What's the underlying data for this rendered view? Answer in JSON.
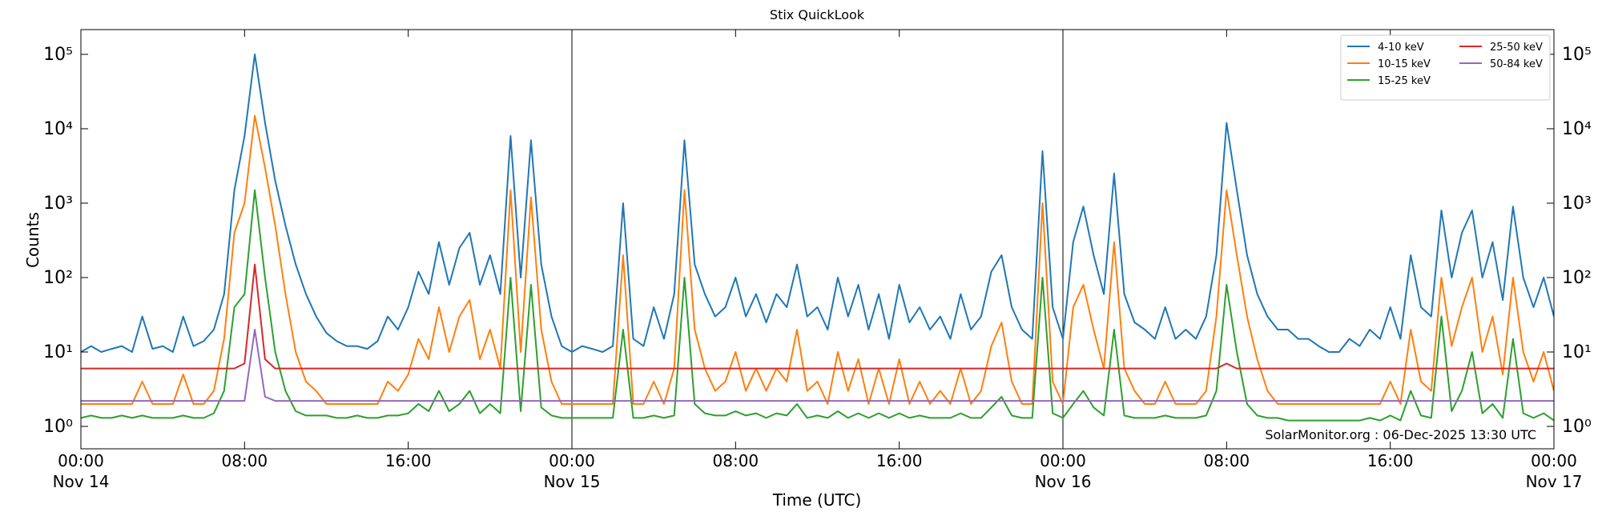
{
  "chart_data": {
    "type": "line",
    "title": "Stix QuickLook",
    "xlabel": "Time (UTC)",
    "ylabel": "Counts",
    "annotation": "SolarMonitor.org : 06-Dec-2025 13:30 UTC",
    "log_y": true,
    "legend": "upper right",
    "ylim": [
      0.5,
      215000
    ],
    "yticks": [
      {
        "value": 1,
        "label": "10⁰"
      },
      {
        "value": 10,
        "label": "10¹"
      },
      {
        "value": 100,
        "label": "10²"
      },
      {
        "value": 1000,
        "label": "10³"
      },
      {
        "value": 10000,
        "label": "10⁴"
      },
      {
        "value": 100000,
        "label": "10⁵"
      }
    ],
    "xlim": [
      "Nov 14 00:00",
      "Nov 17 00:00"
    ],
    "xticks": [
      {
        "value": "Nov 14 00:00",
        "label": "00:00\nNov 14"
      },
      {
        "value": "Nov 14 08:00",
        "label": "08:00"
      },
      {
        "value": "Nov 14 16:00",
        "label": "16:00"
      },
      {
        "value": "Nov 15 00:00",
        "label": "00:00\nNov 15"
      },
      {
        "value": "Nov 15 08:00",
        "label": "08:00"
      },
      {
        "value": "Nov 15 16:00",
        "label": "16:00"
      },
      {
        "value": "Nov 16 00:00",
        "label": "00:00\nNov 16"
      },
      {
        "value": "Nov 16 08:00",
        "label": "08:00"
      },
      {
        "value": "Nov 16 16:00",
        "label": "16:00"
      },
      {
        "value": "Nov 17 00:00",
        "label": "00:00\nNov 17"
      }
    ],
    "vlines": [
      "Nov 15 00:00",
      "Nov 16 00:00"
    ],
    "x": [
      "Nov 14 00:00",
      "Nov 14 00:30",
      "Nov 14 01:00",
      "Nov 14 01:30",
      "Nov 14 02:00",
      "Nov 14 02:30",
      "Nov 14 03:00",
      "Nov 14 03:30",
      "Nov 14 04:00",
      "Nov 14 04:30",
      "Nov 14 05:00",
      "Nov 14 05:30",
      "Nov 14 06:00",
      "Nov 14 06:30",
      "Nov 14 07:00",
      "Nov 14 07:30",
      "Nov 14 08:00",
      "Nov 14 08:30",
      "Nov 14 09:00",
      "Nov 14 09:30",
      "Nov 14 10:00",
      "Nov 14 10:30",
      "Nov 14 11:00",
      "Nov 14 11:30",
      "Nov 14 12:00",
      "Nov 14 12:30",
      "Nov 14 13:00",
      "Nov 14 13:30",
      "Nov 14 14:00",
      "Nov 14 14:30",
      "Nov 14 15:00",
      "Nov 14 15:30",
      "Nov 14 16:00",
      "Nov 14 16:30",
      "Nov 14 17:00",
      "Nov 14 17:30",
      "Nov 14 18:00",
      "Nov 14 18:30",
      "Nov 14 19:00",
      "Nov 14 19:30",
      "Nov 14 20:00",
      "Nov 14 20:30",
      "Nov 14 21:00",
      "Nov 14 21:30",
      "Nov 14 22:00",
      "Nov 14 22:30",
      "Nov 14 23:00",
      "Nov 14 23:30",
      "Nov 15 00:00",
      "Nov 15 00:30",
      "Nov 15 01:00",
      "Nov 15 01:30",
      "Nov 15 02:00",
      "Nov 15 02:30",
      "Nov 15 03:00",
      "Nov 15 03:30",
      "Nov 15 04:00",
      "Nov 15 04:30",
      "Nov 15 05:00",
      "Nov 15 05:30",
      "Nov 15 06:00",
      "Nov 15 06:30",
      "Nov 15 07:00",
      "Nov 15 07:30",
      "Nov 15 08:00",
      "Nov 15 08:30",
      "Nov 15 09:00",
      "Nov 15 09:30",
      "Nov 15 10:00",
      "Nov 15 10:30",
      "Nov 15 11:00",
      "Nov 15 11:30",
      "Nov 15 12:00",
      "Nov 15 12:30",
      "Nov 15 13:00",
      "Nov 15 13:30",
      "Nov 15 14:00",
      "Nov 15 14:30",
      "Nov 15 15:00",
      "Nov 15 15:30",
      "Nov 15 16:00",
      "Nov 15 16:30",
      "Nov 15 17:00",
      "Nov 15 17:30",
      "Nov 15 18:00",
      "Nov 15 18:30",
      "Nov 15 19:00",
      "Nov 15 19:30",
      "Nov 15 20:00",
      "Nov 15 20:30",
      "Nov 15 21:00",
      "Nov 15 21:30",
      "Nov 15 22:00",
      "Nov 15 22:30",
      "Nov 15 23:00",
      "Nov 15 23:30",
      "Nov 16 00:00",
      "Nov 16 00:30",
      "Nov 16 01:00",
      "Nov 16 01:30",
      "Nov 16 02:00",
      "Nov 16 02:30",
      "Nov 16 03:00",
      "Nov 16 03:30",
      "Nov 16 04:00",
      "Nov 16 04:30",
      "Nov 16 05:00",
      "Nov 16 05:30",
      "Nov 16 06:00",
      "Nov 16 06:30",
      "Nov 16 07:00",
      "Nov 16 07:30",
      "Nov 16 08:00",
      "Nov 16 08:30",
      "Nov 16 09:00",
      "Nov 16 09:30",
      "Nov 16 10:00",
      "Nov 16 10:30",
      "Nov 16 11:00",
      "Nov 16 11:30",
      "Nov 16 12:00",
      "Nov 16 12:30",
      "Nov 16 13:00",
      "Nov 16 13:30",
      "Nov 16 14:00",
      "Nov 16 14:30",
      "Nov 16 15:00",
      "Nov 16 15:30",
      "Nov 16 16:00",
      "Nov 16 16:30",
      "Nov 16 17:00",
      "Nov 16 17:30",
      "Nov 16 18:00",
      "Nov 16 18:30",
      "Nov 16 19:00",
      "Nov 16 19:30",
      "Nov 16 20:00",
      "Nov 16 20:30",
      "Nov 16 21:00",
      "Nov 16 21:30",
      "Nov 16 22:00",
      "Nov 16 22:30",
      "Nov 16 23:00",
      "Nov 16 23:30",
      "Nov 17 00:00"
    ],
    "series": [
      {
        "name": "4-10 keV",
        "color": "#1f77b4",
        "values": [
          10,
          12,
          10,
          11,
          12,
          10,
          30,
          11,
          12,
          10,
          30,
          12,
          14,
          20,
          60,
          1500,
          8000,
          100000,
          12000,
          2000,
          500,
          150,
          60,
          30,
          18,
          14,
          12,
          12,
          11,
          14,
          30,
          20,
          40,
          120,
          60,
          300,
          80,
          250,
          400,
          80,
          200,
          60,
          8000,
          100,
          7000,
          150,
          30,
          12,
          10,
          12,
          11,
          10,
          12,
          1000,
          15,
          12,
          40,
          15,
          60,
          7000,
          150,
          60,
          30,
          40,
          100,
          30,
          60,
          25,
          60,
          40,
          150,
          30,
          40,
          20,
          100,
          30,
          80,
          20,
          60,
          15,
          80,
          25,
          40,
          20,
          30,
          15,
          60,
          20,
          30,
          120,
          200,
          40,
          20,
          15,
          5000,
          40,
          15,
          300,
          900,
          200,
          60,
          2500,
          60,
          25,
          20,
          15,
          40,
          15,
          20,
          15,
          30,
          200,
          12000,
          1500,
          200,
          60,
          30,
          20,
          20,
          15,
          15,
          12,
          10,
          10,
          15,
          12,
          20,
          15,
          40,
          15,
          200,
          40,
          30,
          800,
          100,
          400,
          800,
          100,
          300,
          50,
          900,
          100,
          40,
          100,
          30
        ]
      },
      {
        "name": "10-15 keV",
        "color": "#ff7f0e",
        "values": [
          2,
          2,
          2,
          2,
          2,
          2,
          4,
          2,
          2,
          2,
          5,
          2,
          2,
          3,
          15,
          400,
          1000,
          15000,
          3000,
          500,
          60,
          10,
          4,
          3,
          2,
          2,
          2,
          2,
          2,
          2,
          4,
          3,
          5,
          15,
          8,
          40,
          10,
          30,
          50,
          8,
          20,
          6,
          1500,
          10,
          1200,
          20,
          4,
          2,
          2,
          2,
          2,
          2,
          2,
          200,
          2,
          2,
          4,
          2,
          6,
          1500,
          20,
          6,
          3,
          4,
          10,
          3,
          6,
          3,
          6,
          4,
          20,
          3,
          4,
          2,
          10,
          3,
          8,
          2,
          6,
          2,
          8,
          2,
          4,
          2,
          3,
          2,
          6,
          2,
          3,
          12,
          25,
          4,
          2,
          2,
          1000,
          4,
          2,
          40,
          80,
          20,
          6,
          300,
          6,
          3,
          2,
          2,
          4,
          2,
          2,
          2,
          3,
          30,
          1500,
          200,
          30,
          8,
          3,
          2,
          2,
          2,
          2,
          2,
          2,
          2,
          2,
          2,
          2,
          2,
          4,
          2,
          20,
          4,
          3,
          100,
          12,
          40,
          100,
          10,
          30,
          5,
          100,
          10,
          4,
          10,
          3
        ]
      },
      {
        "name": "15-25 keV",
        "color": "#2ca02c",
        "values": [
          1.3,
          1.4,
          1.3,
          1.3,
          1.4,
          1.3,
          1.4,
          1.3,
          1.3,
          1.3,
          1.4,
          1.3,
          1.3,
          1.5,
          3,
          40,
          60,
          1500,
          100,
          10,
          3,
          1.6,
          1.4,
          1.4,
          1.4,
          1.3,
          1.3,
          1.4,
          1.3,
          1.3,
          1.4,
          1.4,
          1.5,
          2,
          1.6,
          3,
          1.6,
          2,
          3,
          1.5,
          2,
          1.5,
          100,
          1.6,
          80,
          1.8,
          1.4,
          1.3,
          1.3,
          1.3,
          1.3,
          1.3,
          1.3,
          20,
          1.3,
          1.3,
          1.4,
          1.3,
          1.4,
          100,
          2,
          1.5,
          1.4,
          1.4,
          1.6,
          1.4,
          1.5,
          1.3,
          1.5,
          1.4,
          2,
          1.3,
          1.4,
          1.3,
          1.6,
          1.3,
          1.5,
          1.3,
          1.5,
          1.3,
          1.5,
          1.3,
          1.4,
          1.3,
          1.3,
          1.3,
          1.5,
          1.3,
          1.3,
          1.8,
          2.5,
          1.4,
          1.3,
          1.3,
          100,
          1.5,
          1.3,
          2,
          3,
          1.8,
          1.4,
          20,
          1.4,
          1.3,
          1.3,
          1.3,
          1.4,
          1.3,
          1.3,
          1.3,
          1.4,
          3,
          80,
          10,
          2,
          1.4,
          1.3,
          1.3,
          1.2,
          1.2,
          1.2,
          1.2,
          1.2,
          1.2,
          1.2,
          1.2,
          1.3,
          1.2,
          1.4,
          1.2,
          3,
          1.4,
          1.3,
          30,
          1.6,
          3,
          10,
          1.5,
          2,
          1.3,
          15,
          1.5,
          1.3,
          1.5,
          1.2
        ]
      },
      {
        "name": "25-50 keV",
        "color": "#d62728",
        "values": [
          6,
          6,
          6,
          6,
          6,
          6,
          6,
          6,
          6,
          6,
          6,
          6,
          6,
          6,
          6,
          6,
          7,
          150,
          8,
          6,
          6,
          6,
          6,
          6,
          6,
          6,
          6,
          6,
          6,
          6,
          6,
          6,
          6,
          6,
          6,
          6,
          6,
          6,
          6,
          6,
          6,
          6,
          6,
          6,
          6,
          6,
          6,
          6,
          6,
          6,
          6,
          6,
          6,
          6,
          6,
          6,
          6,
          6,
          6,
          6,
          6,
          6,
          6,
          6,
          6,
          6,
          6,
          6,
          6,
          6,
          6,
          6,
          6,
          6,
          6,
          6,
          6,
          6,
          6,
          6,
          6,
          6,
          6,
          6,
          6,
          6,
          6,
          6,
          6,
          6,
          6,
          6,
          6,
          6,
          6,
          6,
          6,
          6,
          6,
          6,
          6,
          6,
          6,
          6,
          6,
          6,
          6,
          6,
          6,
          6,
          6,
          6,
          7,
          6,
          6,
          6,
          6,
          6,
          6,
          6,
          6,
          6,
          6,
          6,
          6,
          6,
          6,
          6,
          6,
          6,
          6,
          6,
          6,
          6,
          6,
          6,
          6,
          6,
          6,
          6,
          6,
          6,
          6,
          6,
          6
        ]
      },
      {
        "name": "50-84 keV",
        "color": "#9467bd",
        "values": [
          2.2,
          2.2,
          2.2,
          2.2,
          2.2,
          2.2,
          2.2,
          2.2,
          2.2,
          2.2,
          2.2,
          2.2,
          2.2,
          2.2,
          2.2,
          2.2,
          2.2,
          20,
          2.5,
          2.2,
          2.2,
          2.2,
          2.2,
          2.2,
          2.2,
          2.2,
          2.2,
          2.2,
          2.2,
          2.2,
          2.2,
          2.2,
          2.2,
          2.2,
          2.2,
          2.2,
          2.2,
          2.2,
          2.2,
          2.2,
          2.2,
          2.2,
          2.2,
          2.2,
          2.2,
          2.2,
          2.2,
          2.2,
          2.2,
          2.2,
          2.2,
          2.2,
          2.2,
          2.2,
          2.2,
          2.2,
          2.2,
          2.2,
          2.2,
          2.2,
          2.2,
          2.2,
          2.2,
          2.2,
          2.2,
          2.2,
          2.2,
          2.2,
          2.2,
          2.2,
          2.2,
          2.2,
          2.2,
          2.2,
          2.2,
          2.2,
          2.2,
          2.2,
          2.2,
          2.2,
          2.2,
          2.2,
          2.2,
          2.2,
          2.2,
          2.2,
          2.2,
          2.2,
          2.2,
          2.2,
          2.2,
          2.2,
          2.2,
          2.2,
          2.2,
          2.2,
          2.2,
          2.2,
          2.2,
          2.2,
          2.2,
          2.2,
          2.2,
          2.2,
          2.2,
          2.2,
          2.2,
          2.2,
          2.2,
          2.2,
          2.2,
          2.2,
          2.2,
          2.2,
          2.2,
          2.2,
          2.2,
          2.2,
          2.2,
          2.2,
          2.2,
          2.2,
          2.2,
          2.2,
          2.2,
          2.2,
          2.2,
          2.2,
          2.2,
          2.2,
          2.2,
          2.2,
          2.2,
          2.2,
          2.2,
          2.2,
          2.2,
          2.2,
          2.2,
          2.2,
          2.2,
          2.2,
          2.2,
          2.2,
          2.2
        ]
      }
    ]
  }
}
